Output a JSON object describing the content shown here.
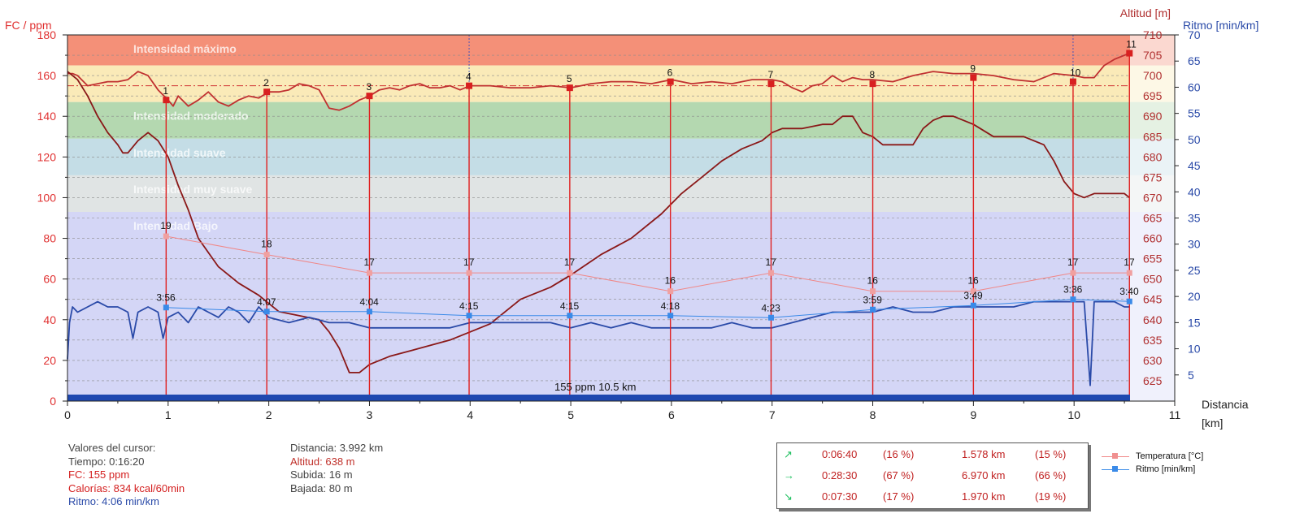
{
  "chart_data": {
    "type": "line",
    "axes": {
      "left": {
        "title": "FC / ppm",
        "min": 0,
        "max": 180,
        "ticks": [
          0,
          20,
          40,
          60,
          80,
          100,
          120,
          140,
          160,
          180
        ],
        "color": "#e03030"
      },
      "altitude": {
        "title": "Altitud [m]",
        "min": 620,
        "max": 710,
        "ticks": [
          625,
          630,
          635,
          640,
          645,
          650,
          655,
          660,
          665,
          670,
          675,
          680,
          685,
          690,
          695,
          700,
          705,
          710
        ],
        "color": "#b03030"
      },
      "pace": {
        "title": "Ritmo [min/km]",
        "min": 0,
        "max": 70,
        "ticks": [
          5,
          10,
          15,
          20,
          25,
          30,
          35,
          40,
          45,
          50,
          55,
          60,
          65,
          70
        ],
        "color": "#2a4aa8"
      },
      "x": {
        "title": "Distancia",
        "unit": "[km]",
        "min": 0,
        "max": 11,
        "ticks": [
          0,
          1,
          2,
          3,
          4,
          5,
          6,
          7,
          8,
          9,
          10,
          11
        ]
      }
    },
    "zones": [
      {
        "label": "Intensidad máximo",
        "from": 165,
        "to": 180,
        "color": "#f49078"
      },
      {
        "label": "",
        "from": 147,
        "to": 165,
        "color": "#faeab8"
      },
      {
        "label": "Intensidad moderado",
        "from": 129,
        "to": 147,
        "color": "#b4d8b0"
      },
      {
        "label": "Intensidad suave",
        "from": 111,
        "to": 129,
        "color": "#c4dde6"
      },
      {
        "label": "Intensidad muy suave",
        "from": 93,
        "to": 111,
        "color": "#e0e4e4"
      },
      {
        "label": "Intensidad Bajo",
        "from": 0,
        "to": 93,
        "color": "#d4d6f6"
      }
    ],
    "series": [
      {
        "name": "FC",
        "axis": "left",
        "color": "#c03030",
        "x": [
          0,
          0.05,
          0.1,
          0.2,
          0.3,
          0.4,
          0.5,
          0.6,
          0.7,
          0.8,
          0.9,
          1.0,
          1.05,
          1.1,
          1.2,
          1.3,
          1.4,
          1.5,
          1.6,
          1.7,
          1.8,
          1.9,
          2.0,
          2.1,
          2.2,
          2.3,
          2.4,
          2.5,
          2.6,
          2.7,
          2.8,
          2.9,
          3.0,
          3.1,
          3.2,
          3.3,
          3.4,
          3.5,
          3.6,
          3.7,
          3.8,
          3.9,
          4.0,
          4.2,
          4.4,
          4.6,
          4.8,
          5.0,
          5.2,
          5.4,
          5.6,
          5.8,
          6.0,
          6.2,
          6.4,
          6.6,
          6.8,
          7.0,
          7.1,
          7.2,
          7.3,
          7.4,
          7.5,
          7.6,
          7.7,
          7.8,
          7.9,
          8.0,
          8.2,
          8.4,
          8.6,
          8.8,
          9.0,
          9.2,
          9.4,
          9.6,
          9.8,
          10.0,
          10.1,
          10.2,
          10.3,
          10.4,
          10.5,
          10.55
        ],
        "y": [
          161,
          161,
          160,
          155,
          156,
          157,
          157,
          158,
          162,
          160,
          153,
          148,
          145,
          150,
          145,
          148,
          152,
          147,
          145,
          148,
          150,
          149,
          152,
          152,
          153,
          156,
          155,
          153,
          144,
          143,
          145,
          148,
          150,
          153,
          154,
          153,
          155,
          156,
          154,
          154,
          155,
          153,
          155,
          155,
          154,
          154,
          155,
          154,
          156,
          157,
          157,
          156,
          158,
          156,
          157,
          156,
          158,
          158,
          157,
          154,
          152,
          155,
          156,
          160,
          157,
          159,
          158,
          158,
          157,
          160,
          162,
          161,
          161,
          160,
          158,
          157,
          161,
          160,
          159,
          159,
          165,
          168,
          170,
          171
        ]
      },
      {
        "name": "Altitud",
        "axis": "altitude",
        "color": "#8a1818",
        "x": [
          0,
          0.05,
          0.1,
          0.2,
          0.3,
          0.4,
          0.5,
          0.55,
          0.6,
          0.7,
          0.8,
          0.9,
          1.0,
          1.1,
          1.2,
          1.3,
          1.5,
          1.7,
          1.9,
          2.1,
          2.3,
          2.5,
          2.6,
          2.7,
          2.8,
          2.9,
          3.0,
          3.2,
          3.5,
          3.8,
          4.0,
          4.2,
          4.5,
          4.8,
          5.0,
          5.3,
          5.6,
          5.9,
          6.1,
          6.3,
          6.5,
          6.7,
          6.9,
          7.0,
          7.1,
          7.3,
          7.5,
          7.6,
          7.7,
          7.8,
          7.9,
          8.0,
          8.1,
          8.2,
          8.4,
          8.5,
          8.6,
          8.7,
          8.8,
          9.0,
          9.2,
          9.3,
          9.5,
          9.7,
          9.8,
          9.9,
          10.0,
          10.1,
          10.2,
          10.3,
          10.4,
          10.5,
          10.55
        ],
        "y": [
          701,
          700,
          699,
          695,
          690,
          686,
          683,
          681,
          681,
          684,
          686,
          684,
          680,
          673,
          667,
          660,
          653,
          649,
          646,
          642,
          641,
          640,
          637,
          633,
          627,
          627,
          629,
          631,
          633,
          635,
          637,
          639,
          645,
          648,
          651,
          656,
          660,
          666,
          671,
          675,
          679,
          682,
          684,
          686,
          687,
          687,
          688,
          688,
          690,
          690,
          686,
          685,
          683,
          683,
          683,
          687,
          689,
          690,
          690,
          688,
          685,
          685,
          685,
          683,
          679,
          674,
          671,
          670,
          671,
          671,
          671,
          671,
          670
        ]
      },
      {
        "name": "Ritmo",
        "axis": "pace",
        "color": "#2a4aa8",
        "x": [
          0,
          0.02,
          0.05,
          0.1,
          0.2,
          0.3,
          0.4,
          0.5,
          0.6,
          0.65,
          0.7,
          0.8,
          0.9,
          0.95,
          1.0,
          1.1,
          1.2,
          1.3,
          1.4,
          1.5,
          1.6,
          1.7,
          1.8,
          1.9,
          2.0,
          2.2,
          2.4,
          2.6,
          2.8,
          3.0,
          3.2,
          3.4,
          3.6,
          3.8,
          4.0,
          4.2,
          4.4,
          4.6,
          4.8,
          5.0,
          5.2,
          5.4,
          5.6,
          5.8,
          6.0,
          6.2,
          6.4,
          6.6,
          6.8,
          7.0,
          7.2,
          7.4,
          7.6,
          7.8,
          8.0,
          8.2,
          8.4,
          8.6,
          8.8,
          9.0,
          9.2,
          9.4,
          9.6,
          9.8,
          10.0,
          10.1,
          10.13,
          10.16,
          10.2,
          10.3,
          10.4,
          10.5,
          10.55
        ],
        "y": [
          8,
          15,
          18,
          17,
          18,
          19,
          18,
          18,
          17,
          12,
          17,
          18,
          17,
          12,
          16,
          17,
          15,
          18,
          17,
          16,
          18,
          17,
          15,
          18,
          16,
          15,
          16,
          15,
          15,
          14,
          14,
          14,
          14,
          14,
          15,
          15,
          15,
          15,
          15,
          14,
          15,
          14,
          15,
          14,
          14,
          14,
          14,
          15,
          14,
          14,
          15,
          16,
          17,
          17,
          17,
          18,
          17,
          17,
          18,
          18,
          18,
          18,
          19,
          19,
          19,
          19,
          11,
          3,
          19,
          19,
          19,
          18,
          18
        ]
      }
    ],
    "lap_markers": [
      {
        "lap": "1",
        "x": 0.98,
        "fc": 148,
        "temp": "19",
        "temp_val": 81,
        "pace_label": "3:56",
        "pace_val": 46
      },
      {
        "lap": "2",
        "x": 1.98,
        "fc": 152,
        "temp": "18",
        "temp_val": 72,
        "pace_label": "4:07",
        "pace_val": 44
      },
      {
        "lap": "3",
        "x": 3.0,
        "fc": 150,
        "temp": "17",
        "temp_val": 63,
        "pace_label": "4:04",
        "pace_val": 44
      },
      {
        "lap": "4",
        "x": 3.99,
        "fc": 155,
        "temp": "17",
        "temp_val": 63,
        "pace_label": "4:15",
        "pace_val": 42
      },
      {
        "lap": "5",
        "x": 4.99,
        "fc": 154,
        "temp": "17",
        "temp_val": 63,
        "pace_label": "4:15",
        "pace_val": 42
      },
      {
        "lap": "6",
        "x": 5.99,
        "fc": 157,
        "temp": "16",
        "temp_val": 54,
        "pace_label": "4:18",
        "pace_val": 42
      },
      {
        "lap": "7",
        "x": 6.99,
        "fc": 156,
        "temp": "17",
        "temp_val": 63,
        "pace_label": "4:23",
        "pace_val": 41
      },
      {
        "lap": "8",
        "x": 8.0,
        "fc": 156,
        "temp": "16",
        "temp_val": 54,
        "pace_label": "3:59",
        "pace_val": 45
      },
      {
        "lap": "9",
        "x": 9.0,
        "fc": 159,
        "temp": "16",
        "temp_val": 54,
        "pace_label": "3:49",
        "pace_val": 47
      },
      {
        "lap": "10",
        "x": 9.99,
        "fc": 157,
        "temp": "17",
        "temp_val": 63,
        "pace_label": "3:36",
        "pace_val": 50
      },
      {
        "lap": "11",
        "x": 10.55,
        "fc": 171,
        "temp": "17",
        "temp_val": 63,
        "pace_label": "3:40",
        "pace_val": 49
      }
    ],
    "cursor_x": 3.99,
    "cursor_x2": 9.99,
    "threshold_fc": 155,
    "summary_bar": "155 ppm 10.5 km",
    "legend": [
      {
        "label": "Temperatura [°C]",
        "color": "#f08888"
      },
      {
        "label": "Ritmo [min/km]",
        "color": "#3a8ae8"
      }
    ]
  },
  "cursor_info": {
    "title": "Valores del cursor:",
    "tiempo": "Tiempo: 0:16:20",
    "fc": "FC: 155 ppm",
    "calorias": "Calorías: 834 kcal/60min",
    "ritmo": "Ritmo: 4:06 min/km",
    "distancia": "Distancia: 3.992 km",
    "altitud": "Altitud: 638 m",
    "subida": "Subida: 16 m",
    "bajada": "Bajada: 80 m"
  },
  "stats_box": [
    {
      "icon": "↗",
      "time": "0:06:40",
      "time_pct": "(16 %)",
      "dist": "1.578 km",
      "dist_pct": "(15 %)"
    },
    {
      "icon": "→",
      "time": "0:28:30",
      "time_pct": "(67 %)",
      "dist": "6.970 km",
      "dist_pct": "(66 %)"
    },
    {
      "icon": "↘",
      "time": "0:07:30",
      "time_pct": "(17 %)",
      "dist": "1.970 km",
      "dist_pct": "(19 %)"
    }
  ]
}
